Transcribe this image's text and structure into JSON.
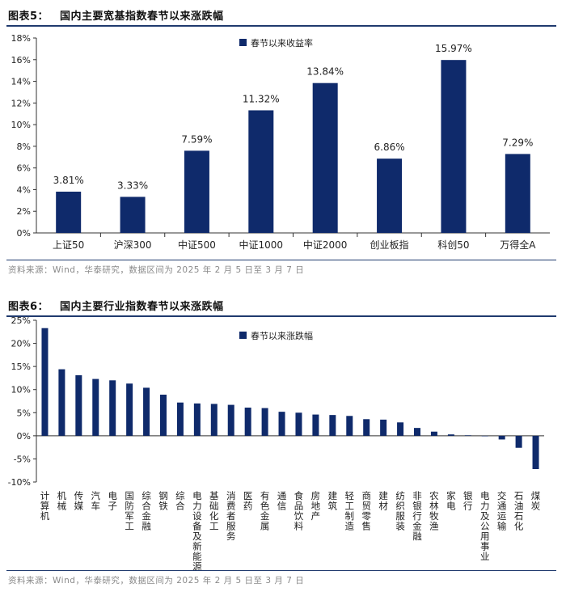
{
  "colors": {
    "bar": "#0f2a6b",
    "rule": "#1f3a6e",
    "axis": "#333333",
    "source": "#8a8a8a"
  },
  "figure1": {
    "label": "图表5：",
    "title": "国内主要宽基指数春节以来涨跌幅",
    "source": "资料来源：Wind，华泰研究，数据区间为 2025 年 2 月 5 日至 3 月 7 日"
  },
  "figure2": {
    "label": "图表6：",
    "title": "国内主要行业指数春节以来涨跌幅",
    "source": "资料来源：Wind，华泰研究，数据区间为 2025 年 2 月 5 日至 3 月 7 日"
  },
  "chart_data": [
    {
      "type": "bar",
      "categories": [
        "上证50",
        "沪深300",
        "中证500",
        "中证1000",
        "中证2000",
        "创业板指",
        "科创50",
        "万得全A"
      ],
      "series": [
        {
          "name": "春节以来收益率",
          "values": [
            3.81,
            3.33,
            7.59,
            11.32,
            13.84,
            6.86,
            15.97,
            7.29
          ]
        }
      ],
      "data_labels": [
        "3.81%",
        "3.33%",
        "7.59%",
        "11.32%",
        "13.84%",
        "6.86%",
        "15.97%",
        "7.29%"
      ],
      "yticks": [
        "0%",
        "2%",
        "4%",
        "6%",
        "8%",
        "10%",
        "12%",
        "14%",
        "16%",
        "18%"
      ],
      "ylim": [
        0,
        18
      ],
      "legend": "top-center",
      "grid": false
    },
    {
      "type": "bar",
      "categories": [
        "计算机",
        "机械",
        "传媒",
        "汽车",
        "电子",
        "国防军工",
        "综合金融",
        "钢铁",
        "综合",
        "电力设备及新能源",
        "基础化工",
        "消费者服务",
        "医药",
        "有色金属",
        "通信",
        "食品饮料",
        "房地产",
        "建筑",
        "轻工制造",
        "商贸零售",
        "建材",
        "纺织服装",
        "非银行金融",
        "农林牧渔",
        "家电",
        "银行",
        "电力及公用事业",
        "交通运输",
        "石油石化",
        "煤炭"
      ],
      "series": [
        {
          "name": "春节以来涨跌幅",
          "values": [
            23.3,
            14.4,
            13.1,
            12.3,
            12.0,
            11.3,
            10.4,
            8.9,
            7.2,
            7.0,
            6.9,
            6.7,
            6.1,
            6.0,
            5.2,
            5.0,
            4.6,
            4.5,
            4.3,
            3.6,
            3.5,
            2.9,
            1.7,
            0.9,
            0.3,
            0.1,
            -0.1,
            -0.8,
            -2.6,
            -7.2
          ]
        }
      ],
      "yticks": [
        "-10%",
        "-5%",
        "0%",
        "5%",
        "10%",
        "15%",
        "20%",
        "25%"
      ],
      "ylim": [
        -10,
        25
      ],
      "legend": "top-center",
      "grid": false
    }
  ]
}
